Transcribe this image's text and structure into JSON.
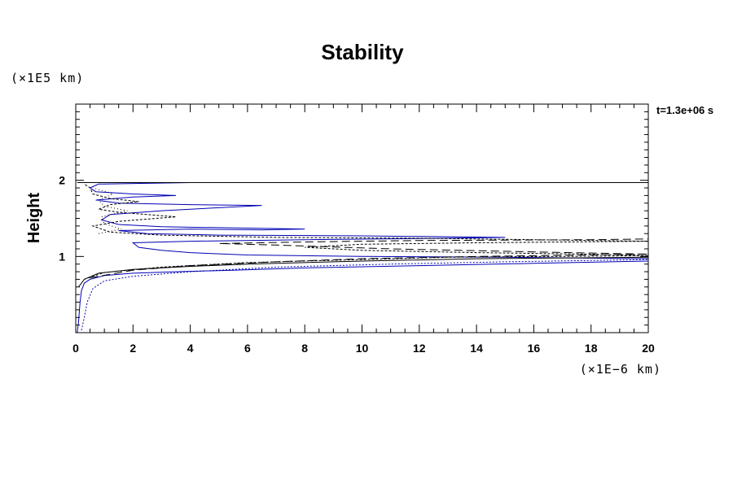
{
  "chart_data": {
    "type": "line",
    "title": "Stability",
    "ylabel": "Height",
    "yunit": "(×1E5 km)",
    "xunit": "(×1E−6 km)",
    "time_label": "t=1.3e+06 s",
    "xlim": [
      0,
      20
    ],
    "ylim": [
      0,
      3
    ],
    "xticks": [
      0,
      2,
      4,
      6,
      8,
      10,
      12,
      14,
      16,
      18,
      20
    ],
    "yticks": [
      1,
      2
    ],
    "grid": false,
    "series": [
      {
        "color": "#0000b4",
        "dash": "",
        "points": [
          [
            0.05,
            0.0
          ],
          [
            0.1,
            0.15
          ],
          [
            0.15,
            0.4
          ],
          [
            0.2,
            0.55
          ],
          [
            0.3,
            0.65
          ],
          [
            0.5,
            0.7
          ],
          [
            1.0,
            0.75
          ],
          [
            2.0,
            0.78
          ],
          [
            3.5,
            0.8
          ],
          [
            5.5,
            0.82
          ],
          [
            8,
            0.85
          ],
          [
            12,
            0.88
          ],
          [
            16,
            0.91
          ],
          [
            20,
            0.94
          ],
          [
            20,
            0.97
          ],
          [
            15,
            0.99
          ],
          [
            10,
            1.0
          ],
          [
            6,
            1.02
          ],
          [
            4,
            1.05
          ],
          [
            3,
            1.08
          ],
          [
            2.2,
            1.12
          ],
          [
            2,
            1.18
          ],
          [
            4,
            1.2
          ],
          [
            8,
            1.22
          ],
          [
            13,
            1.24
          ],
          [
            15,
            1.25
          ],
          [
            10,
            1.27
          ],
          [
            5,
            1.28
          ],
          [
            2.5,
            1.3
          ],
          [
            1.5,
            1.34
          ],
          [
            4,
            1.36
          ],
          [
            6.5,
            1.35
          ],
          [
            8,
            1.36
          ],
          [
            3,
            1.39
          ],
          [
            1.5,
            1.42
          ],
          [
            0.9,
            1.48
          ],
          [
            1.2,
            1.55
          ],
          [
            3,
            1.6
          ],
          [
            6.5,
            1.67
          ],
          [
            4,
            1.68
          ],
          [
            1.5,
            1.7
          ],
          [
            0.7,
            1.74
          ],
          [
            2,
            1.78
          ],
          [
            3.5,
            1.8
          ],
          [
            2,
            1.82
          ],
          [
            0.7,
            1.85
          ],
          [
            0.5,
            1.9
          ],
          [
            0.8,
            1.95
          ],
          [
            4.0,
            1.97
          ]
        ]
      },
      {
        "color": "#0000b4",
        "dash": "2,2",
        "points": [
          [
            0.2,
            0.03
          ],
          [
            0.3,
            0.2
          ],
          [
            0.4,
            0.4
          ],
          [
            0.6,
            0.58
          ],
          [
            1.0,
            0.68
          ],
          [
            2,
            0.74
          ],
          [
            4,
            0.8
          ],
          [
            7,
            0.86
          ],
          [
            11,
            0.9
          ],
          [
            15,
            0.93
          ],
          [
            20,
            0.96
          ]
        ]
      },
      {
        "color": "#000000",
        "dash": "",
        "points": [
          [
            0.1,
            0.6
          ],
          [
            0.3,
            0.7
          ],
          [
            0.8,
            0.78
          ],
          [
            2,
            0.83
          ],
          [
            4,
            0.87
          ],
          [
            6,
            0.9
          ],
          [
            10,
            0.94
          ],
          [
            14,
            0.97
          ],
          [
            20,
            0.99
          ]
        ]
      },
      {
        "color": "#000000",
        "dash": "3,2",
        "points": [
          [
            0.3,
            0.7
          ],
          [
            1,
            0.79
          ],
          [
            3,
            0.86
          ],
          [
            6,
            0.92
          ],
          [
            9,
            0.95
          ],
          [
            13,
            0.99
          ],
          [
            20,
            1.01
          ],
          [
            18,
            1.03
          ],
          [
            14,
            1.05
          ],
          [
            10,
            1.08
          ],
          [
            8,
            1.12
          ],
          [
            10,
            1.16
          ],
          [
            14,
            1.18
          ],
          [
            20,
            1.2
          ],
          [
            16,
            1.22
          ],
          [
            12,
            1.24
          ],
          [
            7,
            1.25
          ],
          [
            3,
            1.28
          ],
          [
            1.2,
            1.32
          ],
          [
            0.6,
            1.4
          ],
          [
            1.5,
            1.46
          ],
          [
            3.5,
            1.52
          ],
          [
            1.5,
            1.58
          ],
          [
            0.8,
            1.62
          ],
          [
            1.2,
            1.68
          ],
          [
            2.2,
            1.72
          ],
          [
            1.2,
            1.76
          ],
          [
            0.6,
            1.82
          ],
          [
            0.5,
            1.9
          ],
          [
            0.3,
            1.95
          ]
        ]
      },
      {
        "color": "#000000",
        "dash": "10,5",
        "points": [
          [
            0.5,
            0.72
          ],
          [
            2,
            0.82
          ],
          [
            4,
            0.88
          ],
          [
            7,
            0.93
          ],
          [
            10,
            0.97
          ],
          [
            14,
            1.0
          ],
          [
            20,
            1.03
          ],
          [
            16,
            1.06
          ],
          [
            11,
            1.1
          ],
          [
            7,
            1.15
          ],
          [
            5,
            1.17
          ],
          [
            8,
            1.19
          ],
          [
            12,
            1.21
          ],
          [
            18,
            1.22
          ],
          [
            20,
            1.23
          ]
        ]
      },
      {
        "color": "#000000",
        "dash": "1,3",
        "points": [
          [
            0.8,
            1.3
          ],
          [
            1.6,
            1.36
          ],
          [
            1.0,
            1.43
          ],
          [
            0.9,
            1.52
          ],
          [
            1.8,
            1.6
          ],
          [
            1.0,
            1.66
          ],
          [
            0.8,
            1.74
          ],
          [
            1.3,
            1.82
          ],
          [
            0.6,
            1.9
          ]
        ]
      },
      {
        "color": "#000000",
        "dash": "",
        "points": [
          [
            0.05,
            1.97
          ],
          [
            20,
            1.97
          ]
        ]
      }
    ]
  }
}
